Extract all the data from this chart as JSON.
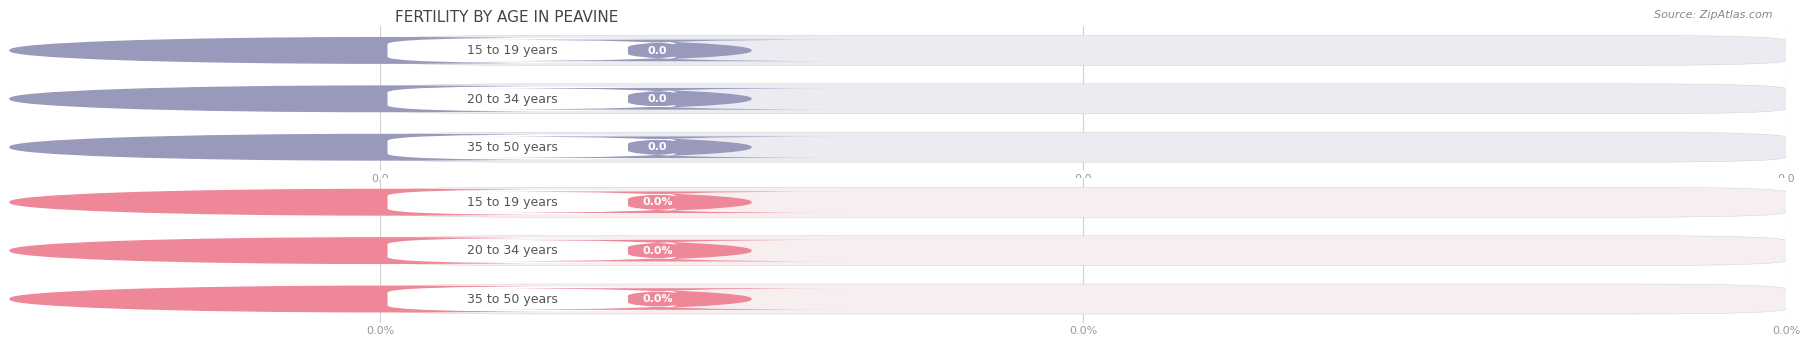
{
  "title": "FERTILITY BY AGE IN PEAVINE",
  "source_text": "Source: ZipAtlas.com",
  "top_section": {
    "categories": [
      "15 to 19 years",
      "20 to 34 years",
      "35 to 50 years"
    ],
    "values": [
      0.0,
      0.0,
      0.0
    ],
    "bar_color": "#9999bb",
    "bar_bg_color": "#ebebf2",
    "circle_color": "#9999bb",
    "badge_color": "#9999bb",
    "is_percent": false,
    "tick_labels": [
      "0.0",
      "0.0",
      "0.0"
    ]
  },
  "bottom_section": {
    "categories": [
      "15 to 19 years",
      "20 to 34 years",
      "35 to 50 years"
    ],
    "values": [
      0.0,
      0.0,
      0.0
    ],
    "bar_color": "#ee8899",
    "bar_bg_color": "#f7eef0",
    "circle_color": "#ee8899",
    "badge_color": "#ee8899",
    "is_percent": true,
    "tick_labels": [
      "0.0%",
      "0.0%",
      "0.0%"
    ]
  },
  "bg_color": "#ffffff",
  "grid_color": "#d0d0d0",
  "title_fontsize": 11,
  "label_fontsize": 9,
  "value_fontsize": 8,
  "tick_fontsize": 8,
  "source_fontsize": 8
}
